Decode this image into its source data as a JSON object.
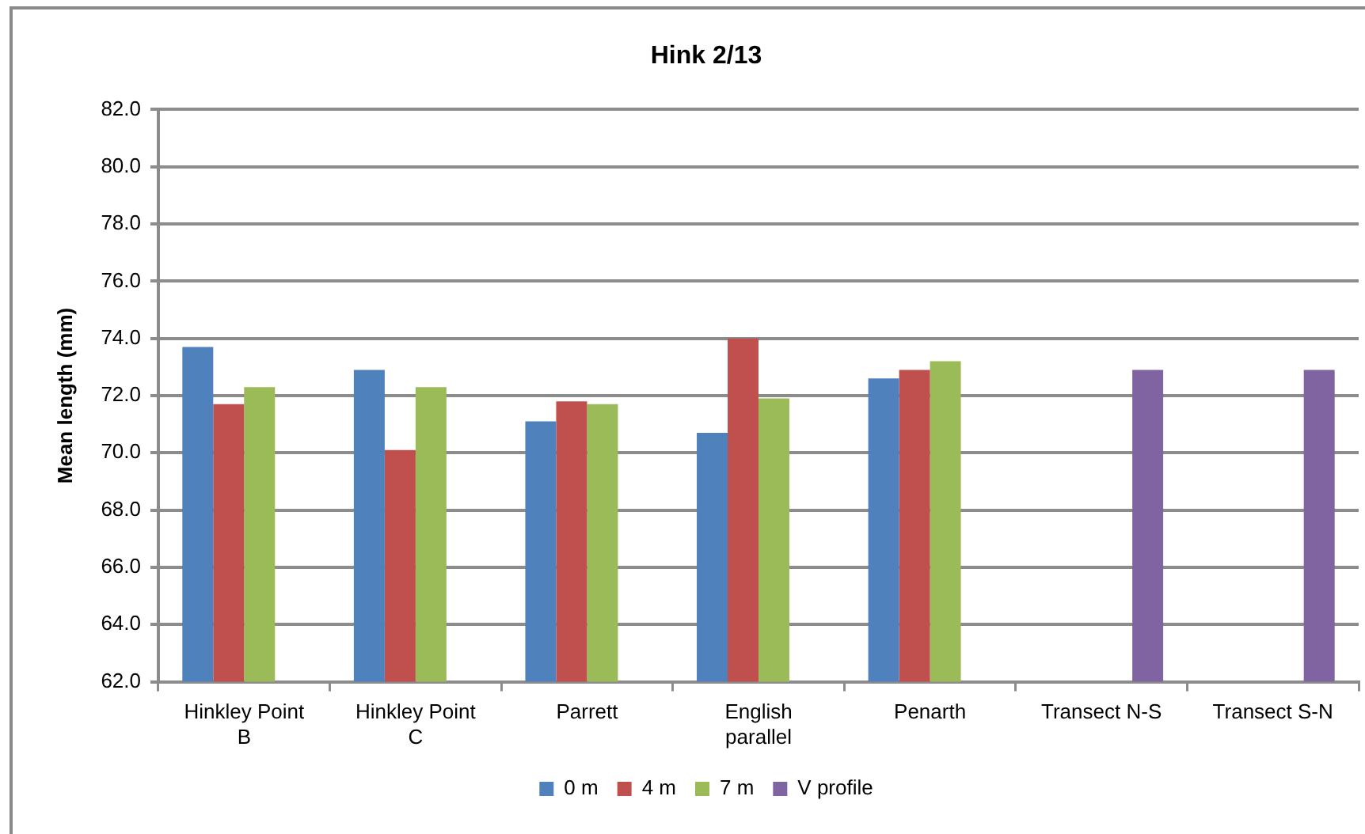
{
  "chart_data": {
    "type": "bar",
    "title": "Hink 2/13",
    "ylabel": "Mean length (mm)",
    "categories": [
      "Hinkley Point B",
      "Hinkley Point C",
      "Parrett",
      "English parallel",
      "Penarth",
      "Transect N-S",
      "Transect S-N"
    ],
    "series": [
      {
        "name": "0 m",
        "color": "#4f81bd",
        "values": [
          73.7,
          72.9,
          71.1,
          70.7,
          72.6,
          null,
          null
        ]
      },
      {
        "name": "4 m",
        "color": "#c0504d",
        "values": [
          71.7,
          70.1,
          71.8,
          74.0,
          72.9,
          null,
          null
        ]
      },
      {
        "name": "7 m",
        "color": "#9bbb59",
        "values": [
          72.3,
          72.3,
          71.7,
          71.9,
          73.2,
          null,
          null
        ]
      },
      {
        "name": "V profile",
        "color": "#8064a2",
        "values": [
          null,
          null,
          null,
          null,
          null,
          72.9,
          72.9
        ]
      }
    ],
    "ylim": [
      62,
      82
    ],
    "yticks": [
      {
        "value": 62,
        "label": "62.0"
      },
      {
        "value": 64,
        "label": "64.0"
      },
      {
        "value": 66,
        "label": "66.0"
      },
      {
        "value": 68,
        "label": "68.0"
      },
      {
        "value": 70,
        "label": "70.0"
      },
      {
        "value": 72,
        "label": "72.0"
      },
      {
        "value": 74,
        "label": "74.0"
      },
      {
        "value": 76,
        "label": "76.0"
      },
      {
        "value": 78,
        "label": "78.0"
      },
      {
        "value": 80,
        "label": "80.0"
      },
      {
        "value": 82,
        "label": "82.0"
      }
    ],
    "grid": "y",
    "legend": "bottom"
  }
}
